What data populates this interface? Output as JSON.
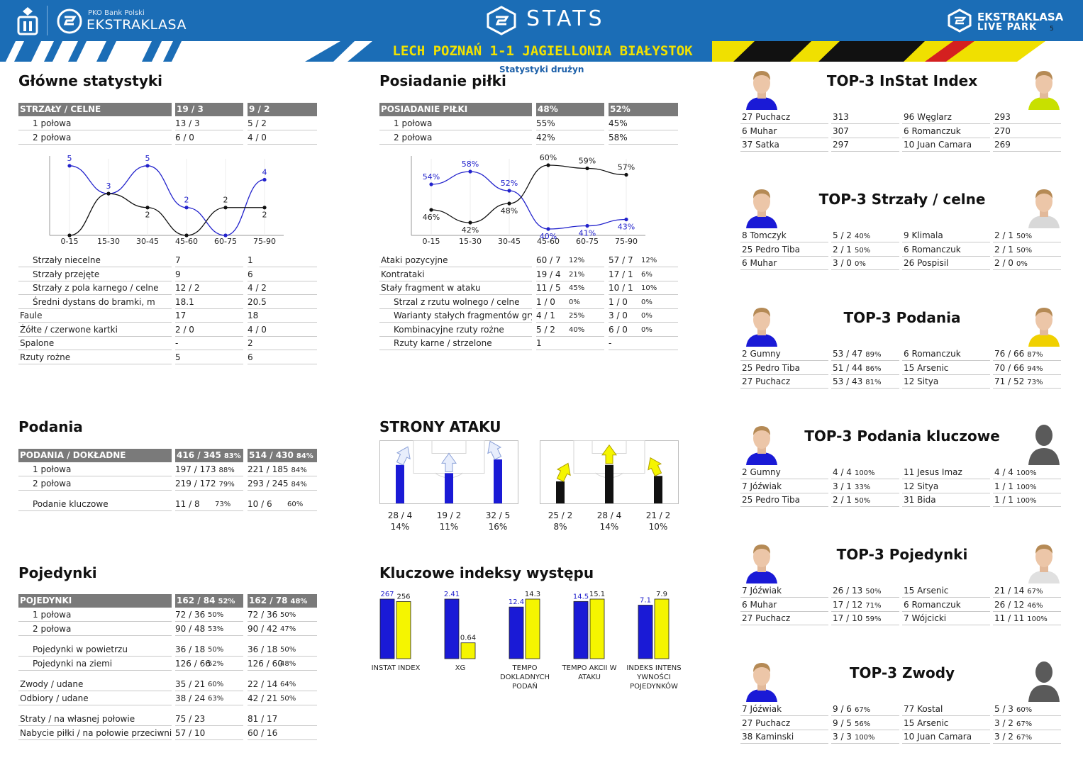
{
  "header": {
    "bank": "PKO Bank Polski",
    "league": "EKSTRAKLASA",
    "stats": "STATS",
    "right_line1": "EKSTRAKLASA",
    "right_line2": "LIVE PARK",
    "page": "5"
  },
  "banner": {
    "match": "LECH POZNAŃ 1-1 JAGIELLONIA BIAŁYSTOK"
  },
  "colors": {
    "blue": "#1b6db6",
    "lech_blue": "#1a1ad6",
    "jaga_yellow": "#f5f500",
    "header_gray": "#7a7a7a"
  },
  "main_stats": {
    "title": "Główne statystyki",
    "header": {
      "label": "STRZAŁY / CELNE",
      "home": "19 / 3",
      "away": "9 / 2"
    },
    "halves": [
      {
        "label": "1 połowa",
        "home": "13 / 3",
        "away": "5 / 2"
      },
      {
        "label": "2 połowa",
        "home": "6 / 0",
        "away": "4 / 0"
      }
    ],
    "rows": [
      {
        "label": "Strzały niecelne",
        "home": "7",
        "away": "1"
      },
      {
        "label": "Strzały przejęte",
        "home": "9",
        "away": "6"
      },
      {
        "label": "Strzały z pola karnego / celne",
        "home": "12 / 2",
        "away": "4 / 2"
      },
      {
        "label": "Średni dystans do bramki, m",
        "home": "18.1",
        "away": "20.5"
      },
      {
        "label": "Faule",
        "home": "17",
        "away": "18"
      },
      {
        "label": "Żółte / czerwone kartki",
        "home": "2 / 0",
        "away": "4 / 0"
      },
      {
        "label": "Spalone",
        "home": "-",
        "away": "2"
      },
      {
        "label": "Rzuty rożne",
        "home": "5",
        "away": "6"
      }
    ]
  },
  "possession": {
    "title": "Posiadanie piłki",
    "subtitle": "Statystyki drużyn",
    "header": {
      "label": "POSIADANIE PIŁKI",
      "home": "48%",
      "away": "52%"
    },
    "halves": [
      {
        "label": "1 połowa",
        "home": "55%",
        "away": "45%"
      },
      {
        "label": "2 połowa",
        "home": "42%",
        "away": "58%"
      }
    ],
    "rows": [
      {
        "label": "Ataki pozycyjne",
        "home": "60 / 7",
        "home_pct": "12%",
        "away": "57 / 7",
        "away_pct": "12%",
        "indent": false
      },
      {
        "label": "Kontrataki",
        "home": "19 / 4",
        "home_pct": "21%",
        "away": "17 / 1",
        "away_pct": "6%",
        "indent": false
      },
      {
        "label": "Stały fragment w ataku",
        "home": "11 / 5",
        "home_pct": "45%",
        "away": "10 / 1",
        "away_pct": "10%",
        "indent": false
      },
      {
        "label": "Strzal z rzutu wolnego / celne",
        "home": "1 / 0",
        "home_pct": "0%",
        "away": "1 / 0",
        "away_pct": "0%",
        "indent": true
      },
      {
        "label": "Warianty stałych fragmentów gry",
        "home": "4 / 1",
        "home_pct": "25%",
        "away": "3 / 0",
        "away_pct": "0%",
        "indent": true
      },
      {
        "label": "Kombinacyjne rzuty rożne",
        "home": "5 / 2",
        "home_pct": "40%",
        "away": "6 / 0",
        "away_pct": "0%",
        "indent": true
      },
      {
        "label": "Rzuty karne /  strzelone",
        "home": "1",
        "home_pct": "",
        "away": "-",
        "away_pct": "",
        "indent": true
      }
    ]
  },
  "passes": {
    "title": "Podania",
    "header": {
      "label": "PODANIA / DOKŁADNE",
      "home": "416 / 345",
      "home_pct": "83%",
      "away": "514 / 430",
      "away_pct": "84%"
    },
    "halves": [
      {
        "label": "1 połowa",
        "home": "197 / 173",
        "home_pct": "88%",
        "away": "221 / 185",
        "away_pct": "84%"
      },
      {
        "label": "2 połowa",
        "home": "219 / 172",
        "home_pct": "79%",
        "away": "293 / 245",
        "away_pct": "84%"
      }
    ],
    "key": {
      "label": "Podanie kluczowe",
      "home": "11 / 8",
      "home_pct": "73%",
      "away": "10 / 6",
      "away_pct": "60%"
    }
  },
  "duels": {
    "title": "Pojedynki",
    "header": {
      "label": "POJEDYNKI",
      "home": "162 / 84",
      "home_pct": "52%",
      "away": "162 / 78",
      "away_pct": "48%"
    },
    "groups": [
      [
        {
          "label": "1 połowa",
          "home": "72 / 36",
          "home_pct": "50%",
          "away": "72 / 36",
          "away_pct": "50%",
          "indent": true
        },
        {
          "label": "2 połowa",
          "home": "90 / 48",
          "home_pct": "53%",
          "away": "90 / 42",
          "away_pct": "47%",
          "indent": true
        }
      ],
      [
        {
          "label": "Pojedynki w powietrzu",
          "home": "36 / 18",
          "home_pct": "50%",
          "away": "36 / 18",
          "away_pct": "50%",
          "indent": true
        },
        {
          "label": "Pojedynki na ziemi",
          "home": "126 / 66",
          "home_pct": "52%",
          "away": "126 / 60",
          "away_pct": "48%",
          "indent": true
        }
      ],
      [
        {
          "label": "Zwody / udane",
          "home": "35 / 21",
          "home_pct": "60%",
          "away": "22 / 14",
          "away_pct": "64%",
          "indent": false
        },
        {
          "label": "Odbiory / udane",
          "home": "38 / 24",
          "home_pct": "63%",
          "away": "42 / 21",
          "away_pct": "50%",
          "indent": false
        }
      ],
      [
        {
          "label": "Straty / na własnej połowie",
          "home": "75 / 23",
          "home_pct": "",
          "away": "81 / 17",
          "away_pct": "",
          "indent": false
        },
        {
          "label": "Nabycie piłki / na połowie przeciwnika",
          "home": "57 / 10",
          "home_pct": "",
          "away": "60 / 16",
          "away_pct": "",
          "indent": false
        }
      ]
    ]
  },
  "attack_sides": {
    "title": "STRONY ATAKU",
    "home": [
      {
        "value": "28 / 4",
        "pct": "14%",
        "share": 14
      },
      {
        "value": "19 / 2",
        "pct": "11%",
        "share": 11
      },
      {
        "value": "32 / 5",
        "pct": "16%",
        "share": 16
      }
    ],
    "away": [
      {
        "value": "25 / 2",
        "pct": "8%",
        "share": 8
      },
      {
        "value": "28 / 4",
        "pct": "14%",
        "share": 14
      },
      {
        "value": "21 / 2",
        "pct": "10%",
        "share": 10
      }
    ]
  },
  "key_indices": {
    "title": "Kluczowe indeksy występu",
    "items": [
      {
        "label": "INSTAT INDEX",
        "home": 267,
        "away": 256,
        "home_label": "267",
        "away_label": "256"
      },
      {
        "label": "XG",
        "home": 2.41,
        "away": 0.64,
        "home_label": "2.41",
        "away_label": "0.64"
      },
      {
        "label": "TEMPO DOKLADNYCH PODAŃ",
        "home": 12.4,
        "away": 14.3,
        "home_label": "12.4",
        "away_label": "14.3"
      },
      {
        "label": "TEMPO AKCII W ATAKU",
        "home": 14.5,
        "away": 15.1,
        "home_label": "14.5",
        "away_label": "15.1"
      },
      {
        "label": "INDEKS INTENS YWNOŚCI POJEDYNKÓW",
        "home": 7.1,
        "away": 7.9,
        "home_label": "7.1",
        "away_label": "7.9"
      }
    ]
  },
  "chart_data": [
    {
      "type": "line",
      "categories": [
        "0-15",
        "15-30",
        "30-45",
        "45-60",
        "60-75",
        "75-90"
      ],
      "series": [
        {
          "values": [
            5,
            3,
            5,
            2,
            0,
            4
          ],
          "color": "#2222cc"
        },
        {
          "values": [
            0,
            3,
            2,
            0,
            2,
            2
          ],
          "color": "#111111"
        }
      ],
      "labels": [
        [
          "5",
          "3",
          "5",
          "2",
          "",
          "4"
        ],
        [
          "",
          "",
          "2",
          "",
          "2",
          "2"
        ]
      ],
      "ylim": [
        0,
        5.5
      ],
      "grid": true
    },
    {
      "type": "line",
      "categories": [
        "0-15",
        "15-30",
        "30-45",
        "45-60",
        "60-75",
        "75-90"
      ],
      "series": [
        {
          "values": [
            54,
            58,
            52,
            40,
            41,
            43
          ],
          "color": "#2222cc"
        },
        {
          "values": [
            46,
            42,
            48,
            60,
            59,
            57
          ],
          "color": "#111111"
        }
      ],
      "labels": [
        [
          "54%",
          "58%",
          "52%",
          "40%",
          "41%",
          "43%"
        ],
        [
          "46%",
          "42%",
          "48%",
          "60%",
          "59%",
          "57%"
        ]
      ],
      "ylim": [
        38,
        62
      ],
      "grid": true
    }
  ],
  "top3": [
    {
      "title": "TOP-3 InStat Index",
      "home": [
        {
          "name": "27 Puchacz",
          "value": "313",
          "pct": ""
        },
        {
          "name": "6   Muhar",
          "value": "307",
          "pct": ""
        },
        {
          "name": "37 Satka",
          "value": "297",
          "pct": ""
        }
      ],
      "away": [
        {
          "name": "96 Węglarz",
          "value": "293",
          "pct": ""
        },
        {
          "name": "6   Romanczuk",
          "value": "270",
          "pct": ""
        },
        {
          "name": "10 Juan Camara",
          "value": "269",
          "pct": ""
        }
      ],
      "home_kit": "#1a1ad6",
      "away_kit": "#c8e000",
      "home_silhouette": false,
      "away_silhouette": false
    },
    {
      "title": "TOP-3 Strzały / celne",
      "home": [
        {
          "name": "8   Tomczyk",
          "value": "5 / 2",
          "pct": "40%"
        },
        {
          "name": "25 Pedro Tiba",
          "value": "2 / 1",
          "pct": "50%"
        },
        {
          "name": "6   Muhar",
          "value": "3 / 0",
          "pct": "0%"
        }
      ],
      "away": [
        {
          "name": "9   Klimala",
          "value": "2 / 1",
          "pct": "50%"
        },
        {
          "name": "6   Romanczuk",
          "value": "2 / 1",
          "pct": "50%"
        },
        {
          "name": "26 Pospisil",
          "value": "2 / 0",
          "pct": "0%"
        }
      ],
      "home_kit": "#1a1ad6",
      "away_kit": "#d8d8d8",
      "home_silhouette": false,
      "away_silhouette": false
    },
    {
      "title": "TOP-3 Podania",
      "home": [
        {
          "name": "2   Gumny",
          "value": "53 / 47",
          "pct": "89%"
        },
        {
          "name": "25 Pedro Tiba",
          "value": "51 / 44",
          "pct": "86%"
        },
        {
          "name": "27 Puchacz",
          "value": "53 / 43",
          "pct": "81%"
        }
      ],
      "away": [
        {
          "name": "6   Romanczuk",
          "value": "76 / 66",
          "pct": "87%"
        },
        {
          "name": "15 Arsenic",
          "value": "70 / 66",
          "pct": "94%"
        },
        {
          "name": "12 Sitya",
          "value": "71 / 52",
          "pct": "73%"
        }
      ],
      "home_kit": "#1a1ad6",
      "away_kit": "#f0d000",
      "home_silhouette": false,
      "away_silhouette": false
    },
    {
      "title": "TOP-3 Podania kluczowe",
      "home": [
        {
          "name": "2   Gumny",
          "value": "4 / 4",
          "pct": "100%"
        },
        {
          "name": "7   Jóźwiak",
          "value": "3 / 1",
          "pct": "33%"
        },
        {
          "name": "25 Pedro Tiba",
          "value": "2 / 1",
          "pct": "50%"
        }
      ],
      "away": [
        {
          "name": "11 Jesus Imaz",
          "value": "4 / 4",
          "pct": "100%"
        },
        {
          "name": "12 Sitya",
          "value": "1 / 1",
          "pct": "100%"
        },
        {
          "name": "31 Bida",
          "value": "1 / 1",
          "pct": "100%"
        }
      ],
      "home_kit": "#1a1ad6",
      "away_kit": "#555555",
      "home_silhouette": false,
      "away_silhouette": true
    },
    {
      "title": "TOP-3 Pojedynki",
      "home": [
        {
          "name": "7   Jóźwiak",
          "value": "26 / 13",
          "pct": "50%"
        },
        {
          "name": "6   Muhar",
          "value": "17 / 12",
          "pct": "71%"
        },
        {
          "name": "27 Puchacz",
          "value": "17 / 10",
          "pct": "59%"
        }
      ],
      "away": [
        {
          "name": "15 Arsenic",
          "value": "21 / 14",
          "pct": "67%"
        },
        {
          "name": "6   Romanczuk",
          "value": "26 / 12",
          "pct": "46%"
        },
        {
          "name": "7   Wójcicki",
          "value": "11 / 11",
          "pct": "100%"
        }
      ],
      "home_kit": "#1a1ad6",
      "away_kit": "#e0e0e0",
      "home_silhouette": false,
      "away_silhouette": false
    },
    {
      "title": "TOP-3 Zwody",
      "home": [
        {
          "name": "7   Jóźwiak",
          "value": "9 / 6",
          "pct": "67%"
        },
        {
          "name": "27 Puchacz",
          "value": "9 / 5",
          "pct": "56%"
        },
        {
          "name": "38 Kaminski",
          "value": "3 / 3",
          "pct": "100%"
        }
      ],
      "away": [
        {
          "name": "77 Kostal",
          "value": "5 / 3",
          "pct": "60%"
        },
        {
          "name": "15 Arsenic",
          "value": "3 / 2",
          "pct": "67%"
        },
        {
          "name": "10 Juan Camara",
          "value": "3 / 2",
          "pct": "67%"
        }
      ],
      "home_kit": "#1a1ad6",
      "away_kit": "#555555",
      "home_silhouette": false,
      "away_silhouette": true
    }
  ]
}
